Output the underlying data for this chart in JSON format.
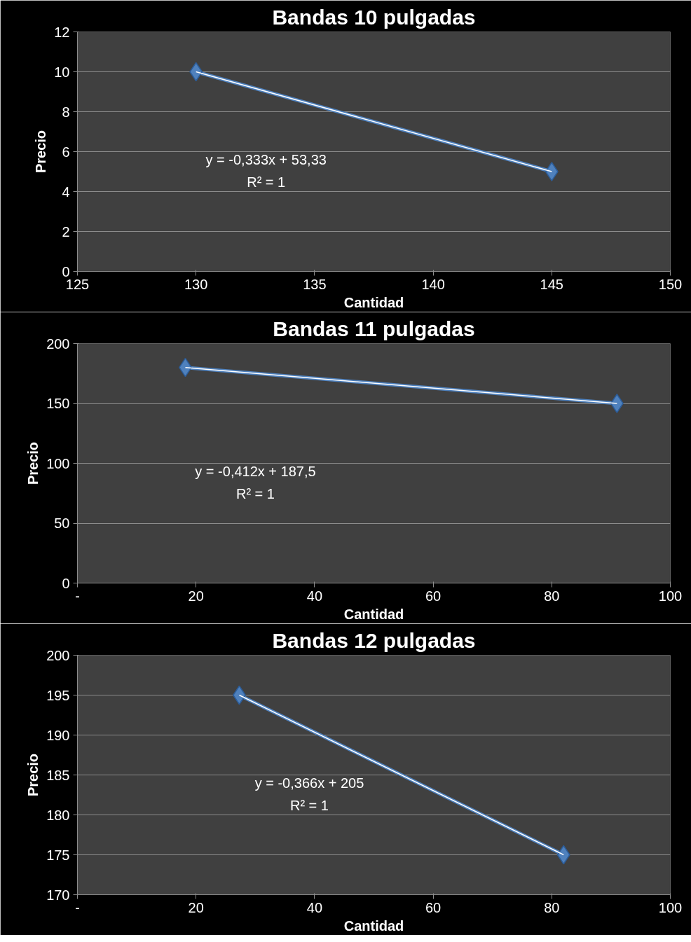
{
  "chart_data": [
    {
      "type": "line",
      "title": "Bandas 10 pulgadas",
      "xlabel": "Cantidad",
      "ylabel": "Precio",
      "xlim": [
        125,
        150
      ],
      "xticks": [
        125,
        130,
        135,
        140,
        145,
        150
      ],
      "ylim": [
        0,
        12
      ],
      "yticks": [
        0,
        2,
        4,
        6,
        8,
        10,
        12
      ],
      "grid": "y",
      "marker": "diamond",
      "series": [
        {
          "color": "#4f81bd",
          "x": [
            130,
            145
          ],
          "values": [
            10,
            5
          ]
        },
        {
          "type": "line",
          "color": "#ffffff",
          "marker": "none",
          "x": [
            130,
            145
          ],
          "values": [
            10,
            5
          ]
        }
      ],
      "annotations": [
        "y = -0,333x + 53,33",
        "R² = 1"
      ]
    },
    {
      "type": "line",
      "title": "Bandas 11 pulgadas",
      "xlabel": "Cantidad",
      "ylabel": "Precio",
      "xlim": [
        0,
        100
      ],
      "xticks": [
        {
          "value": 0,
          "label": "-"
        },
        20,
        40,
        60,
        80,
        100
      ],
      "ylim": [
        0,
        200
      ],
      "yticks": [
        0,
        50,
        100,
        150,
        200
      ],
      "grid": "y",
      "marker": "diamond",
      "series": [
        {
          "color": "#4f81bd",
          "x": [
            18.2,
            91
          ],
          "values": [
            180,
            150
          ]
        },
        {
          "type": "line",
          "color": "#ffffff",
          "marker": "none",
          "x": [
            18.2,
            91
          ],
          "values": [
            180,
            150
          ]
        }
      ],
      "annotations": [
        "y = -0,412x + 187,5",
        "R² = 1"
      ]
    },
    {
      "type": "line",
      "title": "Bandas 12 pulgadas",
      "xlabel": "Cantidad",
      "ylabel": "Precio",
      "xlim": [
        0,
        100
      ],
      "xticks": [
        {
          "value": 0,
          "label": "-"
        },
        20,
        40,
        60,
        80,
        100
      ],
      "ylim": [
        170,
        200
      ],
      "yticks": [
        170,
        175,
        180,
        185,
        190,
        195,
        200
      ],
      "grid": "y",
      "marker": "diamond",
      "series": [
        {
          "color": "#4f81bd",
          "x": [
            27.3,
            82
          ],
          "values": [
            195,
            175
          ]
        },
        {
          "type": "line",
          "color": "#ffffff",
          "marker": "none",
          "x": [
            27.3,
            82
          ],
          "values": [
            195,
            175
          ]
        }
      ],
      "annotations": [
        "y = -0,366x + 205",
        "R² = 1"
      ]
    }
  ]
}
